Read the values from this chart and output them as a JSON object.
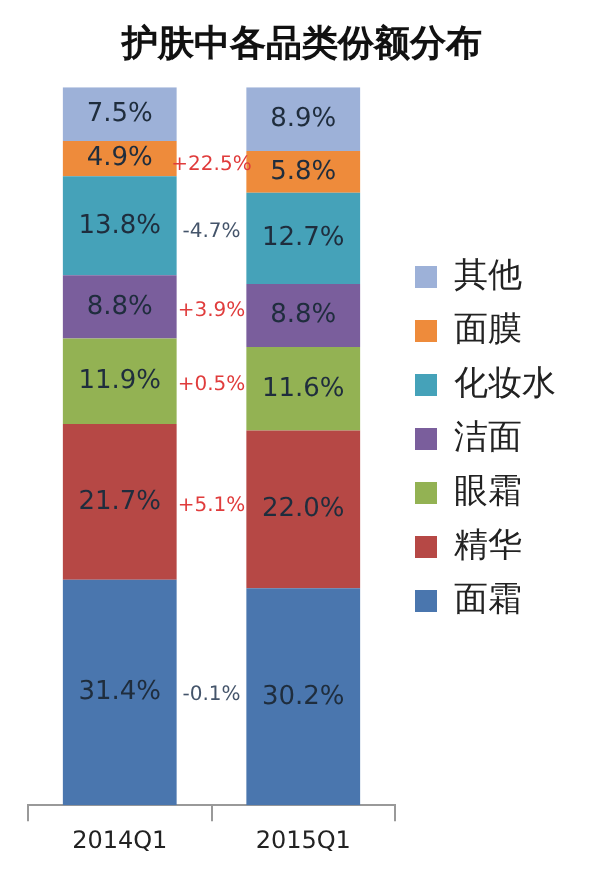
{
  "chart_data": {
    "type": "bar",
    "title": "护肤中各品类份额分布",
    "stacked": true,
    "legend": "right",
    "grid": false,
    "categories": [
      "2014Q1",
      "2015Q1"
    ],
    "series": [
      {
        "name": "面霜",
        "color": "#4a76ae",
        "values": [
          31.4,
          30.2
        ],
        "value_labels": [
          "31.4%",
          "30.2%"
        ]
      },
      {
        "name": "精华",
        "color": "#b64845",
        "values": [
          21.7,
          22.0
        ],
        "value_labels": [
          "21.7%",
          "22.0%"
        ]
      },
      {
        "name": "眼霜",
        "color": "#93b253",
        "values": [
          11.9,
          11.6
        ],
        "value_labels": [
          "11.9%",
          "11.6%"
        ]
      },
      {
        "name": "洁面",
        "color": "#7a5e9c",
        "values": [
          8.8,
          8.8
        ],
        "value_labels": [
          "8.8%",
          "8.8%"
        ]
      },
      {
        "name": "化妆水",
        "color": "#45a2b9",
        "values": [
          13.8,
          12.7
        ],
        "value_labels": [
          "13.8%",
          "12.7%"
        ]
      },
      {
        "name": "面膜",
        "color": "#ee8b3b",
        "values": [
          4.9,
          5.8
        ],
        "value_labels": [
          "4.9%",
          "5.8%"
        ]
      },
      {
        "name": "其他",
        "color": "#9db1d8",
        "values": [
          7.5,
          8.9
        ],
        "value_labels": [
          "7.5%",
          "8.9%"
        ]
      }
    ],
    "annotations": [
      "+22.5%",
      "-4.7%",
      "+3.9%",
      "+0.5%",
      "+5.1%",
      "-0.1%"
    ]
  }
}
